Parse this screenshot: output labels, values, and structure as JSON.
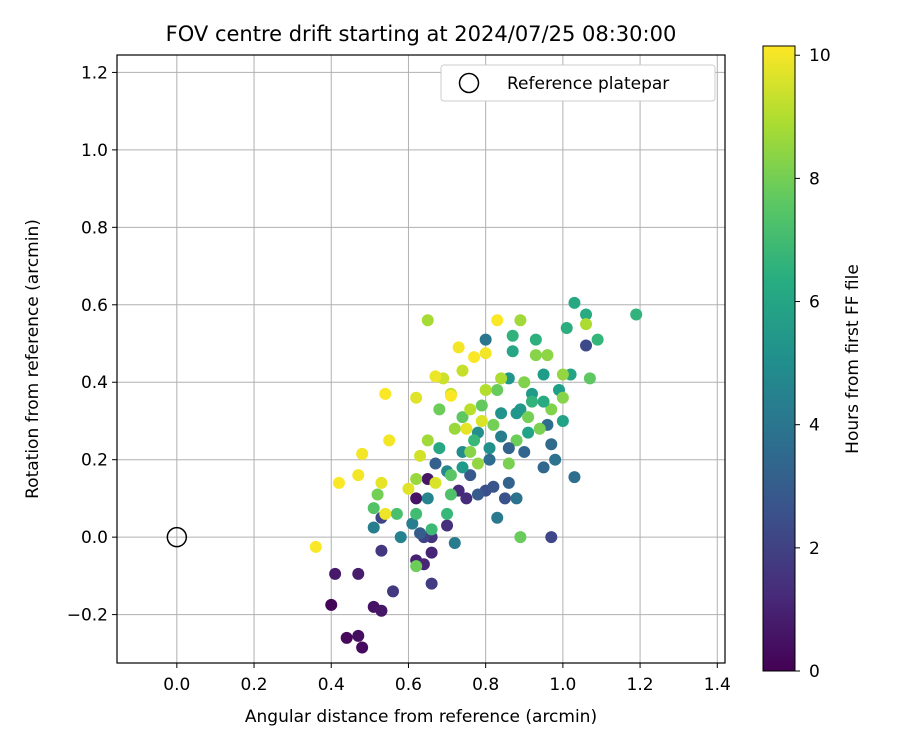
{
  "chart_data": {
    "type": "scatter",
    "title": "FOV centre drift starting at 2024/07/25 08:30:00",
    "xlabel": "Angular distance from reference (arcmin)",
    "ylabel": "Rotation from reference (arcmin)",
    "xlim": [
      -0.155,
      1.42
    ],
    "ylim": [
      -0.325,
      1.245
    ],
    "xticks": [
      0.0,
      0.2,
      0.4,
      0.6,
      0.8,
      1.0,
      1.2,
      1.4
    ],
    "xtick_labels": [
      "0.0",
      "0.2",
      "0.4",
      "0.6",
      "0.8",
      "1.0",
      "1.2",
      "1.4"
    ],
    "yticks": [
      -0.2,
      0.0,
      0.2,
      0.4,
      0.6,
      0.8,
      1.0,
      1.2
    ],
    "ytick_labels": [
      "−0.2",
      "0.0",
      "0.2",
      "0.4",
      "0.6",
      "0.8",
      "1.0",
      "1.2"
    ],
    "grid": true,
    "colormap": "viridis",
    "colorbar": {
      "label": "Hours from first FF file",
      "range": [
        0,
        10.15
      ],
      "ticks": [
        0,
        2,
        4,
        6,
        8,
        10
      ],
      "tick_labels": [
        "0",
        "2",
        "4",
        "6",
        "8",
        "10"
      ]
    },
    "legend": {
      "placement": "top-right",
      "entries": [
        {
          "label": "Reference platepar",
          "marker": "open-circle"
        }
      ]
    },
    "reference_point": {
      "x": 0.0,
      "y": 0.0
    },
    "series": [
      {
        "points": [
          {
            "x": 0.4,
            "y": -0.175,
            "c": 0.1
          },
          {
            "x": 0.44,
            "y": -0.26,
            "c": 0.2
          },
          {
            "x": 0.48,
            "y": -0.285,
            "c": 0.3
          },
          {
            "x": 0.47,
            "y": -0.255,
            "c": 0.4
          },
          {
            "x": 0.51,
            "y": -0.18,
            "c": 0.5
          },
          {
            "x": 0.53,
            "y": -0.19,
            "c": 0.6
          },
          {
            "x": 0.41,
            "y": -0.095,
            "c": 0.7
          },
          {
            "x": 0.47,
            "y": -0.095,
            "c": 0.8
          },
          {
            "x": 0.62,
            "y": -0.06,
            "c": 0.9
          },
          {
            "x": 0.66,
            "y": -0.04,
            "c": 1.0
          },
          {
            "x": 0.64,
            "y": -0.07,
            "c": 1.1
          },
          {
            "x": 0.62,
            "y": 0.1,
            "c": 0.5
          },
          {
            "x": 0.65,
            "y": 0.15,
            "c": 0.6
          },
          {
            "x": 0.73,
            "y": 0.12,
            "c": 1.2
          },
          {
            "x": 0.75,
            "y": 0.1,
            "c": 1.3
          },
          {
            "x": 0.7,
            "y": 0.03,
            "c": 1.4
          },
          {
            "x": 0.66,
            "y": 0.0,
            "c": 1.5
          },
          {
            "x": 0.53,
            "y": -0.035,
            "c": 1.6
          },
          {
            "x": 0.56,
            "y": -0.14,
            "c": 1.7
          },
          {
            "x": 0.66,
            "y": -0.12,
            "c": 1.8
          },
          {
            "x": 0.64,
            "y": 0.0,
            "c": 2.0
          },
          {
            "x": 0.53,
            "y": 0.05,
            "c": 2.1
          },
          {
            "x": 0.97,
            "y": 0.0,
            "c": 2.2
          },
          {
            "x": 1.06,
            "y": 0.495,
            "c": 2.3
          },
          {
            "x": 0.8,
            "y": 0.12,
            "c": 2.5
          },
          {
            "x": 0.85,
            "y": 0.1,
            "c": 2.6
          },
          {
            "x": 0.82,
            "y": 0.13,
            "c": 2.7
          },
          {
            "x": 0.76,
            "y": 0.16,
            "c": 2.8
          },
          {
            "x": 0.63,
            "y": 0.01,
            "c": 3.0
          },
          {
            "x": 0.67,
            "y": 0.19,
            "c": 3.1
          },
          {
            "x": 0.86,
            "y": 0.14,
            "c": 3.2
          },
          {
            "x": 0.9,
            "y": 0.22,
            "c": 3.3
          },
          {
            "x": 0.95,
            "y": 0.18,
            "c": 3.4
          },
          {
            "x": 0.97,
            "y": 0.24,
            "c": 3.5
          },
          {
            "x": 0.96,
            "y": 0.29,
            "c": 3.6
          },
          {
            "x": 1.03,
            "y": 0.155,
            "c": 3.7
          },
          {
            "x": 0.98,
            "y": 0.2,
            "c": 3.8
          },
          {
            "x": 0.88,
            "y": 0.1,
            "c": 3.9
          },
          {
            "x": 0.8,
            "y": 0.51,
            "c": 4.0
          },
          {
            "x": 0.83,
            "y": 0.05,
            "c": 4.1
          },
          {
            "x": 0.72,
            "y": -0.015,
            "c": 4.2
          },
          {
            "x": 0.61,
            "y": 0.035,
            "c": 4.3
          },
          {
            "x": 0.51,
            "y": 0.025,
            "c": 4.4
          },
          {
            "x": 0.58,
            "y": 0.0,
            "c": 4.5
          },
          {
            "x": 0.65,
            "y": 0.1,
            "c": 4.6
          },
          {
            "x": 0.7,
            "y": 0.17,
            "c": 4.8
          },
          {
            "x": 0.74,
            "y": 0.22,
            "c": 4.9
          },
          {
            "x": 0.78,
            "y": 0.27,
            "c": 5.0
          },
          {
            "x": 0.81,
            "y": 0.23,
            "c": 5.1
          },
          {
            "x": 0.84,
            "y": 0.32,
            "c": 5.2
          },
          {
            "x": 0.86,
            "y": 0.41,
            "c": 5.3
          },
          {
            "x": 0.89,
            "y": 0.33,
            "c": 5.4
          },
          {
            "x": 0.92,
            "y": 0.37,
            "c": 5.5
          },
          {
            "x": 0.95,
            "y": 0.42,
            "c": 5.6
          },
          {
            "x": 0.99,
            "y": 0.38,
            "c": 5.7
          },
          {
            "x": 1.0,
            "y": 0.3,
            "c": 5.8
          },
          {
            "x": 1.02,
            "y": 0.42,
            "c": 5.9
          },
          {
            "x": 0.87,
            "y": 0.48,
            "c": 6.0
          },
          {
            "x": 1.03,
            "y": 0.605,
            "c": 6.1
          },
          {
            "x": 1.06,
            "y": 0.575,
            "c": 6.2
          },
          {
            "x": 1.01,
            "y": 0.54,
            "c": 6.3
          },
          {
            "x": 0.93,
            "y": 0.51,
            "c": 6.4
          },
          {
            "x": 0.87,
            "y": 0.52,
            "c": 6.5
          },
          {
            "x": 1.19,
            "y": 0.575,
            "c": 6.6
          },
          {
            "x": 1.09,
            "y": 0.51,
            "c": 6.7
          },
          {
            "x": 0.77,
            "y": 0.25,
            "c": 6.8
          },
          {
            "x": 0.66,
            "y": 0.02,
            "c": 6.9
          },
          {
            "x": 0.7,
            "y": 0.06,
            "c": 6.8
          },
          {
            "x": 0.62,
            "y": 0.06,
            "c": 7.0
          },
          {
            "x": 0.57,
            "y": 0.06,
            "c": 7.2
          },
          {
            "x": 0.51,
            "y": 0.075,
            "c": 7.4
          },
          {
            "x": 0.71,
            "y": 0.16,
            "c": 7.5
          },
          {
            "x": 0.74,
            "y": 0.31,
            "c": 7.6
          },
          {
            "x": 0.79,
            "y": 0.34,
            "c": 7.7
          },
          {
            "x": 0.83,
            "y": 0.38,
            "c": 7.8
          },
          {
            "x": 0.88,
            "y": 0.25,
            "c": 7.9
          },
          {
            "x": 0.91,
            "y": 0.31,
            "c": 8.0
          },
          {
            "x": 0.94,
            "y": 0.28,
            "c": 8.1
          },
          {
            "x": 0.97,
            "y": 0.33,
            "c": 8.2
          },
          {
            "x": 1.0,
            "y": 0.36,
            "c": 8.3
          },
          {
            "x": 1.07,
            "y": 0.41,
            "c": 7.6
          },
          {
            "x": 0.89,
            "y": 0.0,
            "c": 7.8
          },
          {
            "x": 0.62,
            "y": -0.075,
            "c": 7.9
          },
          {
            "x": 0.52,
            "y": 0.11,
            "c": 8.0
          },
          {
            "x": 0.68,
            "y": 0.33,
            "c": 7.9
          },
          {
            "x": 0.82,
            "y": 0.29,
            "c": 8.0
          },
          {
            "x": 0.86,
            "y": 0.19,
            "c": 8.1
          },
          {
            "x": 0.9,
            "y": 0.4,
            "c": 8.2
          },
          {
            "x": 0.93,
            "y": 0.47,
            "c": 8.3
          },
          {
            "x": 0.96,
            "y": 0.47,
            "c": 8.4
          },
          {
            "x": 1.0,
            "y": 0.42,
            "c": 8.5
          },
          {
            "x": 0.78,
            "y": 0.19,
            "c": 8.5
          },
          {
            "x": 0.72,
            "y": 0.28,
            "c": 8.6
          },
          {
            "x": 0.65,
            "y": 0.25,
            "c": 8.7
          },
          {
            "x": 0.62,
            "y": 0.15,
            "c": 8.6
          },
          {
            "x": 0.65,
            "y": 0.56,
            "c": 8.8
          },
          {
            "x": 1.06,
            "y": 0.55,
            "c": 8.9
          },
          {
            "x": 0.89,
            "y": 0.56,
            "c": 8.7
          },
          {
            "x": 0.84,
            "y": 0.41,
            "c": 8.9
          },
          {
            "x": 0.8,
            "y": 0.38,
            "c": 9.0
          },
          {
            "x": 0.76,
            "y": 0.33,
            "c": 9.1
          },
          {
            "x": 0.71,
            "y": 0.37,
            "c": 9.2
          },
          {
            "x": 0.74,
            "y": 0.43,
            "c": 9.3
          },
          {
            "x": 0.69,
            "y": 0.41,
            "c": 9.4
          },
          {
            "x": 0.63,
            "y": 0.21,
            "c": 9.5
          },
          {
            "x": 0.67,
            "y": 0.14,
            "c": 9.6
          },
          {
            "x": 0.6,
            "y": 0.125,
            "c": 9.7
          },
          {
            "x": 0.53,
            "y": 0.14,
            "c": 9.8
          },
          {
            "x": 0.54,
            "y": 0.06,
            "c": 9.9
          },
          {
            "x": 0.47,
            "y": 0.16,
            "c": 10.0
          },
          {
            "x": 0.42,
            "y": 0.14,
            "c": 10.1
          },
          {
            "x": 0.36,
            "y": -0.025,
            "c": 10.1
          },
          {
            "x": 0.48,
            "y": 0.215,
            "c": 10.0
          },
          {
            "x": 0.55,
            "y": 0.25,
            "c": 10.0
          },
          {
            "x": 0.54,
            "y": 0.37,
            "c": 10.1
          },
          {
            "x": 0.62,
            "y": 0.36,
            "c": 9.7
          },
          {
            "x": 0.67,
            "y": 0.415,
            "c": 9.9
          },
          {
            "x": 0.73,
            "y": 0.49,
            "c": 10.0
          },
          {
            "x": 0.77,
            "y": 0.465,
            "c": 10.1
          },
          {
            "x": 0.83,
            "y": 0.56,
            "c": 10.1
          },
          {
            "x": 0.8,
            "y": 0.475,
            "c": 10.0
          },
          {
            "x": 0.71,
            "y": 0.365,
            "c": 10.1
          },
          {
            "x": 0.75,
            "y": 0.28,
            "c": 9.8
          },
          {
            "x": 0.79,
            "y": 0.3,
            "c": 9.6
          },
          {
            "x": 0.88,
            "y": 0.32,
            "c": 5.3
          },
          {
            "x": 0.91,
            "y": 0.27,
            "c": 5.8
          },
          {
            "x": 0.95,
            "y": 0.35,
            "c": 6.2
          },
          {
            "x": 0.92,
            "y": 0.35,
            "c": 6.6
          },
          {
            "x": 0.84,
            "y": 0.26,
            "c": 4.4
          },
          {
            "x": 0.81,
            "y": 0.2,
            "c": 3.6
          },
          {
            "x": 0.86,
            "y": 0.23,
            "c": 3.2
          },
          {
            "x": 0.78,
            "y": 0.11,
            "c": 2.9
          },
          {
            "x": 0.74,
            "y": 0.18,
            "c": 5.5
          },
          {
            "x": 0.68,
            "y": 0.23,
            "c": 6.1
          },
          {
            "x": 0.71,
            "y": 0.11,
            "c": 7.3
          },
          {
            "x": 0.76,
            "y": 0.22,
            "c": 8.3
          }
        ]
      }
    ]
  }
}
